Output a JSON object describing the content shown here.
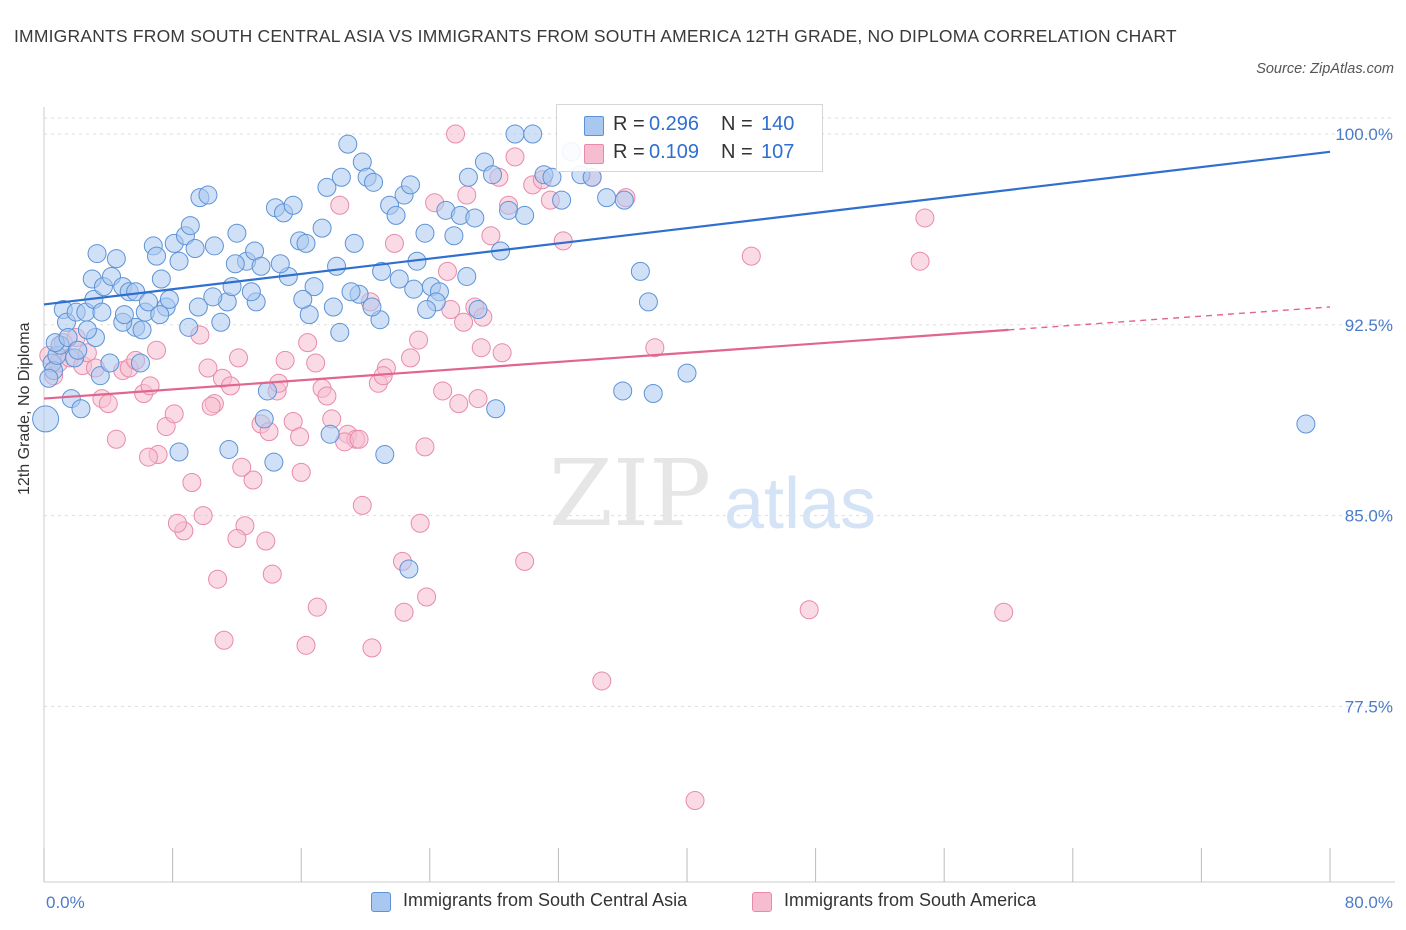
{
  "title": "IMMIGRANTS FROM SOUTH CENTRAL ASIA VS IMMIGRANTS FROM SOUTH AMERICA 12TH GRADE, NO DIPLOMA CORRELATION CHART",
  "source": "Source: ZipAtlas.com",
  "watermark": {
    "zip": "ZIP",
    "atlas": "atlas"
  },
  "legend": {
    "r_label": "R =",
    "n_label": "N =",
    "series": [
      {
        "r": "0.296",
        "n": "140"
      },
      {
        "r": "0.109",
        "n": "107"
      }
    ]
  },
  "colors": {
    "blue_fill": "#a9c8f0",
    "blue_stroke": "#5d93d6",
    "blue_line": "#2f6fcf",
    "pink_fill": "#f6bdd0",
    "pink_stroke": "#e98aab",
    "pink_line": "#e0658f",
    "tick_label": "#4a7cc9",
    "grid": "#dddddd"
  },
  "chart_data": {
    "type": "scatter",
    "title": "IMMIGRANTS FROM SOUTH CENTRAL ASIA VS IMMIGRANTS FROM SOUTH AMERICA 12TH GRADE, NO DIPLOMA CORRELATION CHART",
    "xlabel": "",
    "ylabel": "12th Grade, No Diploma",
    "xlim": [
      0,
      80
    ],
    "ylim": [
      70.0,
      101.0
    ],
    "x_tick_labels": [
      "0.0%",
      "80.0%"
    ],
    "y_ticks": [
      77.5,
      85.0,
      92.5,
      100.0
    ],
    "y_tick_labels": [
      "77.5%",
      "85.0%",
      "92.5%",
      "100.0%"
    ],
    "grid": true,
    "series": [
      {
        "name": "Immigrants from South Central Asia",
        "color": "#a9c8f0",
        "trend": {
          "x": [
            0,
            80
          ],
          "y": [
            93.3,
            99.3
          ],
          "dashed_from": null
        },
        "points": [
          [
            0.1,
            88.8
          ],
          [
            0.5,
            91.0
          ],
          [
            0.6,
            90.7
          ],
          [
            0.8,
            91.3
          ],
          [
            1.0,
            91.7
          ],
          [
            1.2,
            93.1
          ],
          [
            1.4,
            92.6
          ],
          [
            1.7,
            89.6
          ],
          [
            1.9,
            91.2
          ],
          [
            2.0,
            93.0
          ],
          [
            2.3,
            89.2
          ],
          [
            2.6,
            93.0
          ],
          [
            3.0,
            94.3
          ],
          [
            3.1,
            93.5
          ],
          [
            3.3,
            95.3
          ],
          [
            3.6,
            93.0
          ],
          [
            3.7,
            94.0
          ],
          [
            4.2,
            94.4
          ],
          [
            4.5,
            95.1
          ],
          [
            4.9,
            94.0
          ],
          [
            5.3,
            93.8
          ],
          [
            5.7,
            92.4
          ],
          [
            6.0,
            91.0
          ],
          [
            6.3,
            93.0
          ],
          [
            6.8,
            95.6
          ],
          [
            7.0,
            95.2
          ],
          [
            7.3,
            94.3
          ],
          [
            7.6,
            93.2
          ],
          [
            8.1,
            95.7
          ],
          [
            8.4,
            95.0
          ],
          [
            8.8,
            96.0
          ],
          [
            9.1,
            96.4
          ],
          [
            9.4,
            95.5
          ],
          [
            9.7,
            97.5
          ],
          [
            10.2,
            97.6
          ],
          [
            10.6,
            95.6
          ],
          [
            11.0,
            92.6
          ],
          [
            11.4,
            93.4
          ],
          [
            11.7,
            94.0
          ],
          [
            12.0,
            96.1
          ],
          [
            12.6,
            95.0
          ],
          [
            13.1,
            95.4
          ],
          [
            13.5,
            94.8
          ],
          [
            13.9,
            89.9
          ],
          [
            14.4,
            97.1
          ],
          [
            14.9,
            96.9
          ],
          [
            15.5,
            97.2
          ],
          [
            15.9,
            95.8
          ],
          [
            16.3,
            95.7
          ],
          [
            16.8,
            94.0
          ],
          [
            17.3,
            96.3
          ],
          [
            17.6,
            97.9
          ],
          [
            18.0,
            93.2
          ],
          [
            18.5,
            98.3
          ],
          [
            18.9,
            99.6
          ],
          [
            19.3,
            95.7
          ],
          [
            19.8,
            98.9
          ],
          [
            20.1,
            98.3
          ],
          [
            20.5,
            98.1
          ],
          [
            21.0,
            94.6
          ],
          [
            21.5,
            97.2
          ],
          [
            21.9,
            96.8
          ],
          [
            22.4,
            97.6
          ],
          [
            22.8,
            98.0
          ],
          [
            23.2,
            95.0
          ],
          [
            23.7,
            96.1
          ],
          [
            24.1,
            94.0
          ],
          [
            24.6,
            93.8
          ],
          [
            25.0,
            97.0
          ],
          [
            25.5,
            96.0
          ],
          [
            25.9,
            96.8
          ],
          [
            26.4,
            98.3
          ],
          [
            26.8,
            96.7
          ],
          [
            27.4,
            98.9
          ],
          [
            27.9,
            98.4
          ],
          [
            28.4,
            95.4
          ],
          [
            28.9,
            97.0
          ],
          [
            29.3,
            100.0
          ],
          [
            29.9,
            96.8
          ],
          [
            30.4,
            100.0
          ],
          [
            31.1,
            98.4
          ],
          [
            31.6,
            98.3
          ],
          [
            32.2,
            97.4
          ],
          [
            32.8,
            99.3
          ],
          [
            33.4,
            98.4
          ],
          [
            34.1,
            98.3
          ],
          [
            35.0,
            97.5
          ],
          [
            36.1,
            97.4
          ],
          [
            37.1,
            94.6
          ],
          [
            37.6,
            93.4
          ],
          [
            8.4,
            87.5
          ],
          [
            11.5,
            87.6
          ],
          [
            13.7,
            88.8
          ],
          [
            14.3,
            87.1
          ],
          [
            17.8,
            88.2
          ],
          [
            21.2,
            87.4
          ],
          [
            22.7,
            82.9
          ],
          [
            28.1,
            89.2
          ],
          [
            40.0,
            90.6
          ],
          [
            36.0,
            89.9
          ],
          [
            37.9,
            89.8
          ],
          [
            78.5,
            88.6
          ],
          [
            3.2,
            92.0
          ],
          [
            4.9,
            92.6
          ],
          [
            5.7,
            93.8
          ],
          [
            6.5,
            93.4
          ],
          [
            7.2,
            92.9
          ],
          [
            9.0,
            92.4
          ],
          [
            10.5,
            93.6
          ],
          [
            13.2,
            93.4
          ],
          [
            15.2,
            94.4
          ],
          [
            16.5,
            92.9
          ],
          [
            18.4,
            92.2
          ],
          [
            19.6,
            93.7
          ],
          [
            20.9,
            92.7
          ],
          [
            23.0,
            93.9
          ],
          [
            24.4,
            93.4
          ],
          [
            26.3,
            94.4
          ],
          [
            27.0,
            93.1
          ],
          [
            0.3,
            90.4
          ],
          [
            0.7,
            91.8
          ],
          [
            1.5,
            92.0
          ],
          [
            2.1,
            91.5
          ],
          [
            2.7,
            92.3
          ],
          [
            3.5,
            90.5
          ],
          [
            4.1,
            91.0
          ],
          [
            5.0,
            92.9
          ],
          [
            6.1,
            92.3
          ],
          [
            7.8,
            93.5
          ],
          [
            9.6,
            93.2
          ],
          [
            11.9,
            94.9
          ],
          [
            12.9,
            93.8
          ],
          [
            14.7,
            94.9
          ],
          [
            16.1,
            93.5
          ],
          [
            18.2,
            94.8
          ],
          [
            19.1,
            93.8
          ],
          [
            20.4,
            93.2
          ],
          [
            22.1,
            94.3
          ],
          [
            23.8,
            93.1
          ]
        ]
      },
      {
        "name": "Immigrants from South America",
        "color": "#f6bdd0",
        "trend": {
          "x": [
            0,
            80
          ],
          "y": [
            89.6,
            93.2
          ],
          "dashed_from": 60
        },
        "points": [
          [
            0.3,
            91.3
          ],
          [
            0.6,
            90.5
          ],
          [
            0.9,
            91.0
          ],
          [
            1.2,
            91.8
          ],
          [
            1.6,
            91.2
          ],
          [
            2.0,
            92.0
          ],
          [
            2.4,
            90.9
          ],
          [
            2.7,
            91.4
          ],
          [
            3.2,
            90.8
          ],
          [
            3.6,
            89.6
          ],
          [
            4.0,
            89.4
          ],
          [
            4.5,
            88.0
          ],
          [
            4.9,
            90.7
          ],
          [
            5.3,
            90.8
          ],
          [
            5.7,
            91.1
          ],
          [
            6.2,
            89.8
          ],
          [
            6.6,
            90.1
          ],
          [
            7.1,
            87.4
          ],
          [
            7.6,
            88.5
          ],
          [
            8.1,
            89.0
          ],
          [
            8.7,
            84.4
          ],
          [
            9.2,
            86.3
          ],
          [
            9.7,
            92.1
          ],
          [
            10.2,
            90.8
          ],
          [
            10.6,
            89.4
          ],
          [
            11.1,
            90.4
          ],
          [
            11.6,
            90.1
          ],
          [
            12.1,
            91.2
          ],
          [
            12.5,
            84.6
          ],
          [
            13.0,
            86.4
          ],
          [
            13.5,
            88.6
          ],
          [
            14.0,
            88.3
          ],
          [
            14.5,
            89.9
          ],
          [
            15.0,
            91.1
          ],
          [
            15.5,
            88.7
          ],
          [
            16.0,
            86.7
          ],
          [
            16.4,
            91.8
          ],
          [
            16.9,
            91.0
          ],
          [
            17.3,
            90.0
          ],
          [
            17.9,
            88.8
          ],
          [
            18.4,
            97.2
          ],
          [
            18.9,
            88.2
          ],
          [
            19.4,
            88.0
          ],
          [
            19.8,
            85.4
          ],
          [
            20.3,
            93.4
          ],
          [
            20.8,
            90.2
          ],
          [
            21.3,
            90.8
          ],
          [
            21.8,
            95.7
          ],
          [
            22.3,
            83.2
          ],
          [
            22.8,
            91.2
          ],
          [
            23.3,
            91.9
          ],
          [
            23.8,
            81.8
          ],
          [
            24.3,
            97.3
          ],
          [
            24.8,
            89.9
          ],
          [
            25.3,
            93.1
          ],
          [
            25.8,
            89.4
          ],
          [
            26.3,
            97.6
          ],
          [
            26.8,
            93.2
          ],
          [
            27.3,
            92.8
          ],
          [
            27.8,
            96.0
          ],
          [
            28.3,
            98.3
          ],
          [
            28.9,
            97.2
          ],
          [
            29.3,
            99.1
          ],
          [
            29.9,
            83.2
          ],
          [
            30.4,
            98.0
          ],
          [
            31.0,
            98.2
          ],
          [
            31.5,
            97.4
          ],
          [
            32.3,
            95.8
          ],
          [
            34.1,
            98.3
          ],
          [
            34.7,
            78.5
          ],
          [
            36.2,
            97.5
          ],
          [
            38.0,
            91.6
          ],
          [
            40.5,
            73.8
          ],
          [
            44.0,
            95.2
          ],
          [
            47.6,
            81.3
          ],
          [
            54.5,
            95.0
          ],
          [
            54.8,
            96.7
          ],
          [
            59.7,
            81.2
          ],
          [
            6.5,
            87.3
          ],
          [
            7.0,
            91.5
          ],
          [
            8.3,
            84.7
          ],
          [
            9.9,
            85.0
          ],
          [
            10.8,
            82.5
          ],
          [
            11.2,
            80.1
          ],
          [
            12.0,
            84.1
          ],
          [
            13.8,
            84.0
          ],
          [
            14.2,
            82.7
          ],
          [
            16.3,
            79.9
          ],
          [
            17.0,
            81.4
          ],
          [
            18.7,
            87.9
          ],
          [
            20.4,
            79.8
          ],
          [
            22.4,
            81.2
          ],
          [
            23.4,
            84.7
          ],
          [
            25.6,
            100.0
          ],
          [
            26.1,
            92.6
          ],
          [
            27.2,
            91.6
          ],
          [
            10.4,
            89.3
          ],
          [
            12.3,
            86.9
          ],
          [
            14.6,
            90.2
          ],
          [
            15.9,
            88.1
          ],
          [
            17.6,
            89.7
          ],
          [
            19.6,
            88.0
          ],
          [
            21.1,
            90.5
          ],
          [
            23.7,
            87.7
          ],
          [
            25.1,
            94.6
          ],
          [
            27.0,
            89.6
          ],
          [
            28.5,
            91.4
          ]
        ]
      }
    ]
  },
  "bottom_legend": [
    {
      "label": "Immigrants from South Central Asia"
    },
    {
      "label": "Immigrants from South America"
    }
  ]
}
